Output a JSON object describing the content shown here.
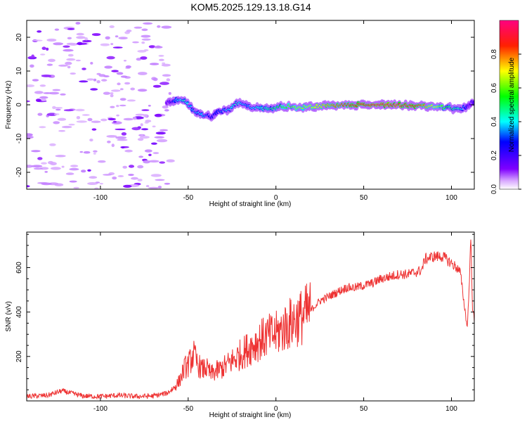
{
  "title": "KOM5.2025.129.13.18.G14",
  "colors": {
    "snr_line": "#ee3333",
    "background": "#ffffff",
    "noise_scatter": "#a050f0"
  },
  "chart_data": [
    {
      "type": "heatmap",
      "xlabel": "Height of straight line (km)",
      "ylabel": "Frequency (Hz)",
      "xlim": [
        -142,
        113
      ],
      "ylim": [
        -25,
        25
      ],
      "xticks": [
        -100,
        -50,
        0,
        50,
        100
      ],
      "yticks": [
        -20,
        -10,
        0,
        10,
        20
      ],
      "grid": false,
      "colorbar": {
        "label": "Normalized spectral amplitude",
        "range": [
          0,
          1
        ],
        "ticks": [
          0.0,
          0.2,
          0.4,
          0.6,
          0.8
        ],
        "colormap": "rainbow (magenta-blue-cyan-green-yellow-red-pink)"
      },
      "ridge": {
        "description": "dominant frequency track vs height",
        "x": [
          -62,
          -57,
          -52,
          -47,
          -42,
          -37,
          -32,
          -27,
          -22,
          -17,
          -12,
          -7,
          -2,
          3,
          8,
          13,
          18,
          23,
          28,
          33,
          40,
          50,
          60,
          70,
          80,
          90,
          100,
          105,
          110,
          113
        ],
        "frequency": [
          0.5,
          1.5,
          1.0,
          -1.5,
          -3.0,
          -3.5,
          -2.0,
          -1.5,
          0.5,
          0.0,
          -1.0,
          -1.0,
          -1.0,
          -0.5,
          -0.5,
          -1.0,
          -0.5,
          -0.5,
          -0.3,
          -0.3,
          0.0,
          0.0,
          0.0,
          0.0,
          -0.3,
          -0.5,
          -1.0,
          -1.5,
          0.0,
          1.0
        ],
        "amplitude": [
          0.15,
          0.35,
          0.45,
          0.35,
          0.4,
          0.25,
          0.3,
          0.4,
          0.45,
          0.35,
          0.4,
          0.45,
          0.5,
          0.55,
          0.6,
          0.65,
          0.65,
          0.7,
          0.75,
          0.8,
          0.85,
          0.9,
          0.95,
          0.95,
          0.85,
          0.7,
          0.5,
          0.45,
          0.2,
          0.15
        ]
      },
      "noise_region": {
        "x": [
          -142,
          -60
        ],
        "frequency": [
          -25,
          25
        ],
        "amplitude": 0.1
      }
    },
    {
      "type": "line",
      "xlabel": "Height of straight line (km)",
      "ylabel": "SNR (v/v)",
      "xlim": [
        -142,
        113
      ],
      "ylim": [
        0,
        760
      ],
      "xticks": [
        -100,
        -50,
        0,
        50,
        100
      ],
      "yticks": [
        200,
        400,
        600
      ],
      "grid": false,
      "series": [
        {
          "x": [
            -142,
            -130,
            -122,
            -110,
            -100,
            -90,
            -80,
            -70,
            -62,
            -58,
            -55,
            -52,
            -50,
            -47,
            -45,
            -42,
            -40,
            -37,
            -35,
            -30,
            -25,
            -20,
            -15,
            -10,
            -5,
            0,
            5,
            10,
            15,
            20,
            25,
            30,
            35,
            40,
            45,
            50,
            55,
            60,
            65,
            70,
            75,
            80,
            83,
            85,
            90,
            95,
            100,
            103,
            105,
            107,
            109,
            110,
            111,
            112,
            113
          ],
          "values": [
            20,
            25,
            45,
            22,
            20,
            25,
            20,
            22,
            35,
            60,
            90,
            150,
            160,
            210,
            170,
            140,
            150,
            120,
            130,
            150,
            180,
            210,
            240,
            270,
            290,
            300,
            330,
            360,
            380,
            410,
            450,
            470,
            490,
            510,
            510,
            520,
            530,
            550,
            560,
            570,
            570,
            580,
            590,
            640,
            650,
            650,
            620,
            600,
            580,
            450,
            330,
            500,
            740,
            420,
            360
          ]
        }
      ]
    }
  ]
}
